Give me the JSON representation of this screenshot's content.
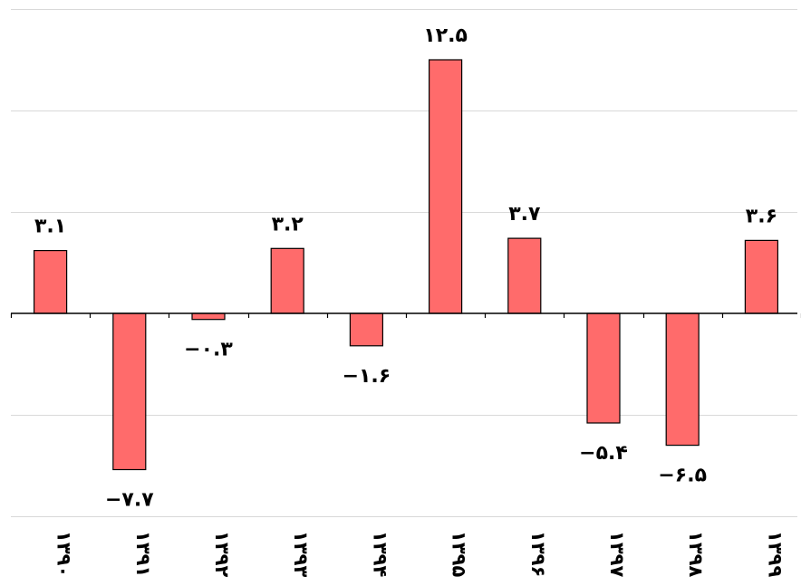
{
  "chart_data": {
    "type": "bar",
    "categories": [
      "۱۳۹۰",
      "۱۳۹۱",
      "۱۳۹۲",
      "۱۳۹۳",
      "۱۳۹۴",
      "۱۳۹۵",
      "۱۳۹۶",
      "۱۳۹۷",
      "۱۳۹۸",
      "۱۳۹۹"
    ],
    "values": [
      3.1,
      -7.7,
      -0.3,
      3.2,
      -1.6,
      12.5,
      3.7,
      -5.4,
      -6.5,
      3.6
    ],
    "data_labels": [
      "۳.۱",
      "−۷.۷",
      "−۰.۳",
      "۳.۲",
      "−۱.۶",
      "۱۲.۵",
      "۳.۷",
      "−۵.۴",
      "−۶.۵",
      "۳.۶"
    ],
    "title": "",
    "xlabel": "",
    "ylabel": "",
    "ylim": [
      -10,
      15
    ],
    "gridlines": [
      -10,
      -5,
      0,
      5,
      10,
      15
    ],
    "grid": true,
    "legend": "none",
    "colors": {
      "bar_fill": "#ff6b6b",
      "bar_stroke": "#000000",
      "grid": "#d9d9d9",
      "axis": "#000000"
    }
  }
}
